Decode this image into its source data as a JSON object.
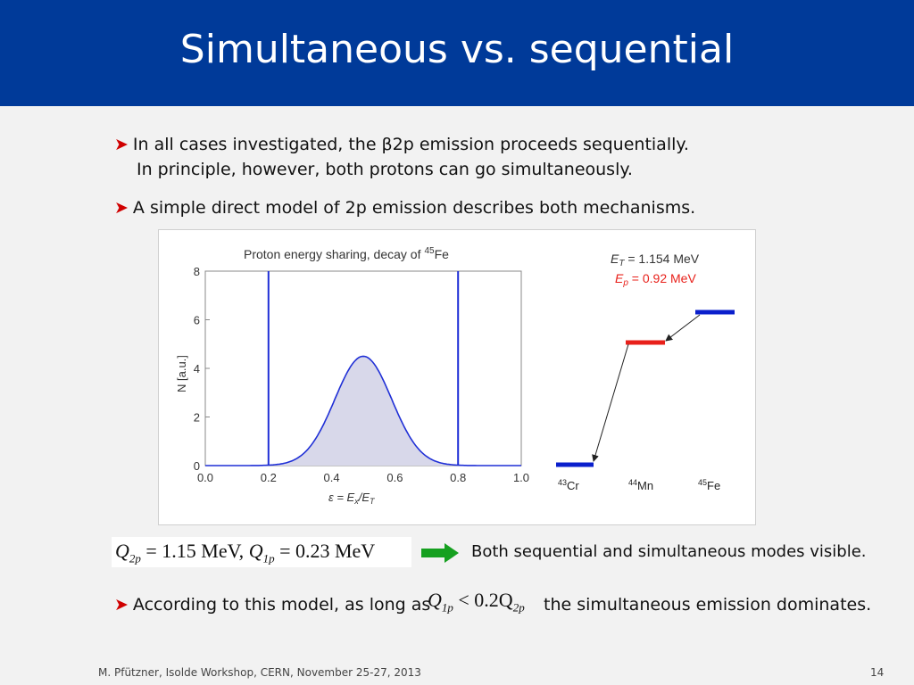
{
  "slide": {
    "title": "Simultaneous vs. sequential",
    "bullets": {
      "b1_line1": "In all cases investigated, the β2p emission proceeds sequentially.",
      "b1_line2": "In principle, however, both protons can go simultaneously.",
      "b2": "A simple direct model of 2p emission describes both mechanisms.",
      "b3_prefix": "According to this model, as long as",
      "b3_suffix": "the simultaneous emission  dominates."
    },
    "equation1": {
      "q2p_label": "Q",
      "q2p_sub": "2p",
      "q2p_value": "= 1.15 MeV,",
      "q1p_label": "Q",
      "q1p_sub": "1p",
      "q1p_value": "= 0.23 MeV"
    },
    "equation2": {
      "lhs": "Q",
      "lhs_sub": "1p",
      "rel": "< 0.2Q",
      "rhs_sub": "2p"
    },
    "result_text": "Both sequential and simultaneous modes visible.",
    "footer_left": "M. Pfützner, Isolde Workshop, CERN, November 25-27, 2013",
    "page_number": "14"
  },
  "level_scheme": {
    "et_label": "E",
    "et_sub": "T",
    "et_value": " = 1.154 MeV",
    "ep_label": "E",
    "ep_sub": "p",
    "ep_value": " = 0.92 MeV",
    "nucleus_43_mass": "43",
    "nucleus_43_sym": "Cr",
    "nucleus_44_mass": "44",
    "nucleus_44_sym": "Mn",
    "nucleus_45_mass": "45",
    "nucleus_45_sym": "Fe",
    "colors": {
      "ground": "#0a1fcc",
      "intermediate": "#e8201a",
      "ep_text": "#e8201a"
    }
  },
  "chart_data": {
    "type": "area",
    "title": "Proton energy sharing, decay of",
    "title_mass": "45",
    "title_nucleus": "Fe",
    "xlabel": "ε = E",
    "xlabel_sub": "x",
    "xlabel_tail": "/E",
    "xlabel_sub2": "T",
    "ylabel": "N [a.u.]",
    "xlim": [
      0.0,
      1.0
    ],
    "ylim": [
      0,
      8
    ],
    "xticks": [
      "0.0",
      "0.2",
      "0.4",
      "0.6",
      "0.8",
      "1.0"
    ],
    "yticks": [
      "0",
      "2",
      "4",
      "6",
      "8"
    ],
    "series": [
      {
        "shape": "gaussian",
        "center": 0.5,
        "peak": 4.5,
        "sigma": 0.09
      },
      {
        "shape": "spike",
        "x": [
          0.2,
          0.8
        ],
        "height": 8
      }
    ],
    "colors": {
      "line": "#1f2fd6",
      "fill": "#d8d8ea"
    }
  }
}
